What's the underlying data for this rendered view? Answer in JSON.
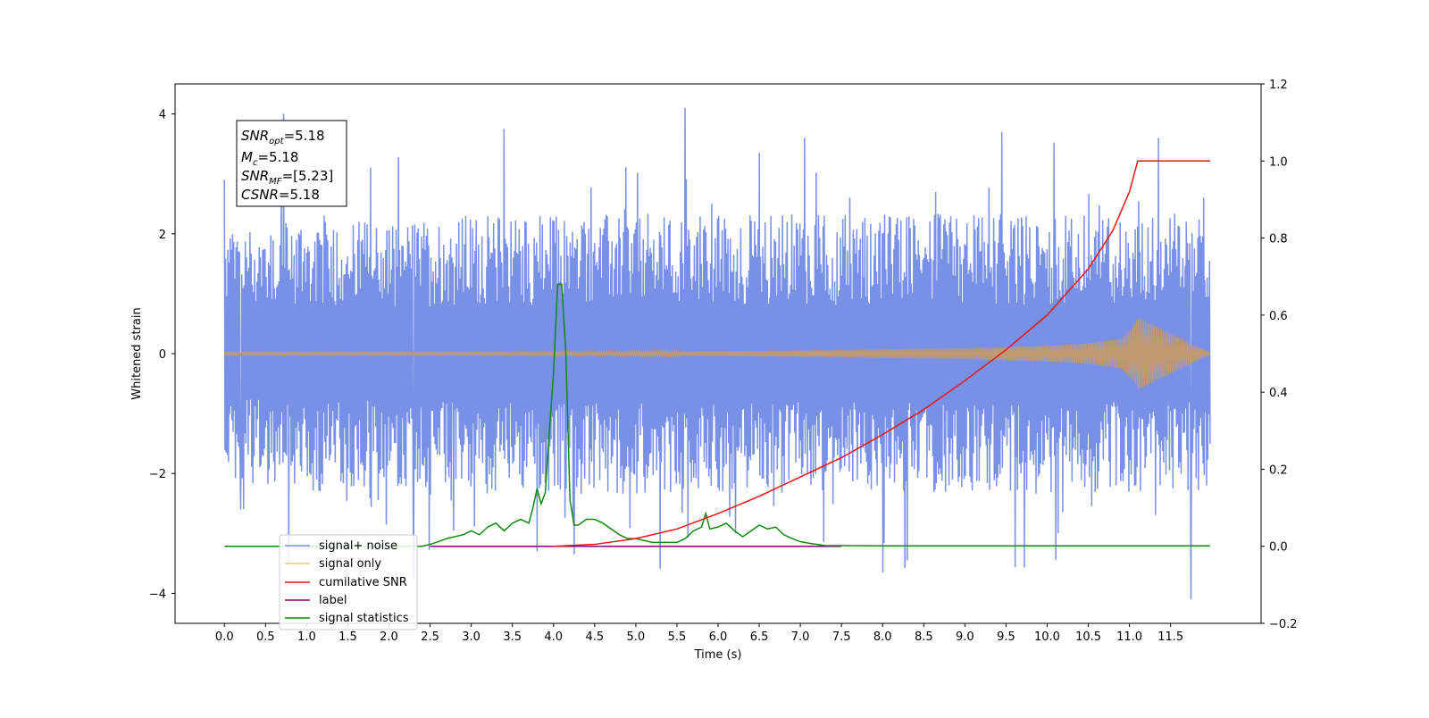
{
  "chart_data": {
    "type": "line",
    "xlabel": "Time (s)",
    "ylabel": "Whitened strain",
    "xlim": [
      -0.6,
      12.6
    ],
    "ylim_left": [
      -4.5,
      4.5
    ],
    "ylim_right": [
      -0.2,
      1.2
    ],
    "x_ticks": [
      "0.0",
      "0.5",
      "1.0",
      "1.5",
      "2.0",
      "2.5",
      "3.0",
      "3.5",
      "4.0",
      "4.5",
      "5.0",
      "5.5",
      "6.0",
      "6.5",
      "7.0",
      "7.5",
      "8.0",
      "8.5",
      "9.0",
      "9.5",
      "10.0",
      "10.5",
      "11.0",
      "11.5"
    ],
    "y_ticks_left": [
      "4",
      "2",
      "0",
      "−2",
      "−4"
    ],
    "y_ticks_right": [
      "1.2",
      "1.0",
      "0.8",
      "0.6",
      "0.4",
      "0.2",
      "0.0",
      "−0.2"
    ],
    "colors": {
      "signal_noise": "#7891e6",
      "signal_only": "#fec16b",
      "signal_blend": "#c19a72",
      "cumulative_snr": "#ee1111",
      "label": "#800080",
      "signal_statistics": "#118811"
    },
    "annotation": {
      "snr_opt": {
        "base": "SNR",
        "sub": "opt",
        "value": "=5.18"
      },
      "mc": {
        "base": "M",
        "sub": "c",
        "value": "=5.18"
      },
      "snr_mf": {
        "base": "SNR",
        "sub": "MF",
        "value": "=[5.23]"
      },
      "csnr": {
        "base": "CSNR",
        "value": "=5.18"
      }
    },
    "legend": {
      "position": "lower-left",
      "entries": [
        "signal+ noise",
        "signal only",
        "cumilative SNR",
        "label",
        "signal statistics"
      ]
    },
    "signal_noise_envelope": {
      "x": [
        0.0,
        1.0,
        2.0,
        3.0,
        4.0,
        5.0,
        6.0,
        7.0,
        8.0,
        9.0,
        10.0,
        11.0,
        11.98
      ],
      "upper_typical": [
        1.6,
        1.8,
        1.7,
        1.8,
        1.8,
        1.8,
        1.8,
        1.8,
        1.8,
        1.8,
        1.8,
        1.8,
        1.8
      ],
      "lower_typical": [
        -1.6,
        -1.8,
        -1.7,
        -1.8,
        -1.8,
        -1.8,
        -1.8,
        -1.8,
        -1.8,
        -1.8,
        -1.8,
        -1.8,
        -1.8
      ],
      "spike_x": [
        0.0,
        0.72,
        3.4,
        5.6,
        6.5,
        7.05,
        9.45,
        11.35,
        0.2,
        2.3,
        3.8,
        8.0,
        8.3,
        11.75
      ],
      "spike_y": [
        2.9,
        4.0,
        3.75,
        4.1,
        3.35,
        3.6,
        3.7,
        3.6,
        -2.6,
        -3.75,
        -3.3,
        -3.65,
        -3.45,
        -4.1
      ]
    },
    "signal_only_envelope": {
      "x": [
        0.0,
        3.0,
        5.0,
        6.0,
        7.0,
        8.0,
        9.0,
        10.0,
        10.5,
        10.9,
        11.05,
        11.1,
        11.98
      ],
      "amplitude": [
        0.02,
        0.02,
        0.03,
        0.04,
        0.05,
        0.07,
        0.09,
        0.13,
        0.17,
        0.25,
        0.45,
        0.6,
        0.01
      ]
    },
    "cumulative_snr": {
      "x": [
        4.0,
        4.5,
        5.0,
        5.5,
        6.0,
        6.5,
        7.0,
        7.5,
        8.0,
        8.5,
        9.0,
        9.5,
        10.0,
        10.5,
        10.8,
        11.0,
        11.1,
        11.98
      ],
      "y": [
        0.0,
        0.005,
        0.02,
        0.045,
        0.085,
        0.13,
        0.18,
        0.23,
        0.29,
        0.355,
        0.43,
        0.51,
        0.6,
        0.72,
        0.82,
        0.92,
        1.0,
        1.0
      ]
    },
    "label_series": {
      "x": [
        2.5,
        7.5
      ],
      "y": [
        0.0,
        0.0
      ]
    },
    "signal_statistics": {
      "x": [
        0.0,
        2.4,
        2.5,
        2.6,
        2.7,
        2.8,
        2.9,
        3.0,
        3.1,
        3.2,
        3.3,
        3.4,
        3.5,
        3.6,
        3.7,
        3.75,
        3.8,
        3.85,
        3.9,
        3.95,
        4.0,
        4.05,
        4.1,
        4.15,
        4.2,
        4.25,
        4.3,
        4.4,
        4.5,
        4.6,
        4.7,
        4.8,
        4.9,
        5.0,
        5.2,
        5.5,
        5.6,
        5.7,
        5.8,
        5.85,
        5.9,
        6.0,
        6.1,
        6.2,
        6.3,
        6.4,
        6.5,
        6.6,
        6.7,
        6.8,
        6.9,
        7.0,
        7.1,
        7.3,
        8.0,
        11.98
      ],
      "y": [
        0.0,
        0.0,
        0.005,
        0.012,
        0.02,
        0.025,
        0.03,
        0.04,
        0.03,
        0.05,
        0.06,
        0.04,
        0.06,
        0.07,
        0.06,
        0.1,
        0.15,
        0.11,
        0.14,
        0.3,
        0.45,
        0.68,
        0.68,
        0.5,
        0.12,
        0.055,
        0.055,
        0.07,
        0.07,
        0.06,
        0.045,
        0.03,
        0.02,
        0.02,
        0.01,
        0.01,
        0.02,
        0.04,
        0.05,
        0.085,
        0.045,
        0.05,
        0.06,
        0.04,
        0.025,
        0.04,
        0.055,
        0.045,
        0.05,
        0.03,
        0.02,
        0.012,
        0.008,
        0.002,
        0.001,
        0.001
      ]
    }
  }
}
